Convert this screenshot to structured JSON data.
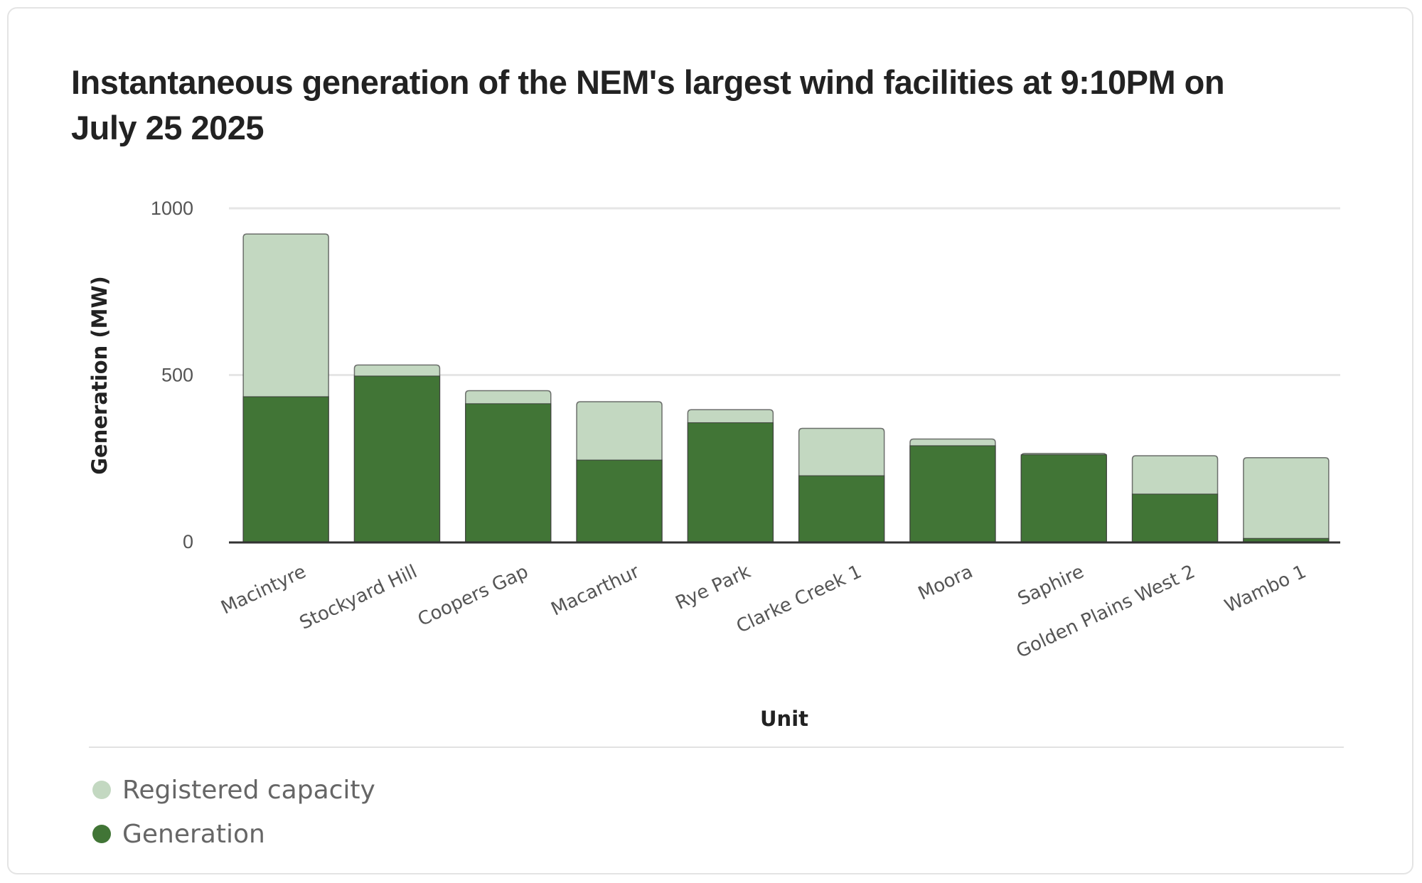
{
  "colors": {
    "capacity": "#c3d8c1",
    "generation": "#417536",
    "gridline": "#e6e6e6",
    "baseline": "#333333",
    "bar_outline": "#3a3a3a"
  },
  "chart_data": {
    "type": "bar",
    "stacking": "overlay",
    "title": "Instantaneous generation of the NEM's largest wind facilities at 9:10PM on July 25 2025",
    "xlabel": "Unit",
    "ylabel": "Generation (MW)",
    "ylim": [
      0,
      1000
    ],
    "yticks": [
      "0",
      "500",
      "1000"
    ],
    "grid": true,
    "legend_position": "bottom-left",
    "categories": [
      "Macintyre",
      "Stockyard Hill",
      "Coopers Gap",
      "Macarthur",
      "Rye Park",
      "Clarke Creek 1",
      "Moora",
      "Saphire",
      "Golden Plains West 2",
      "Wambo 1"
    ],
    "series": [
      {
        "name": "Registered capacity",
        "values": [
          923,
          530,
          453,
          420,
          396,
          340,
          308,
          265,
          258,
          252
        ]
      },
      {
        "name": "Generation",
        "values": [
          435,
          497,
          414,
          245,
          357,
          198,
          288,
          261,
          143,
          10
        ]
      }
    ]
  }
}
